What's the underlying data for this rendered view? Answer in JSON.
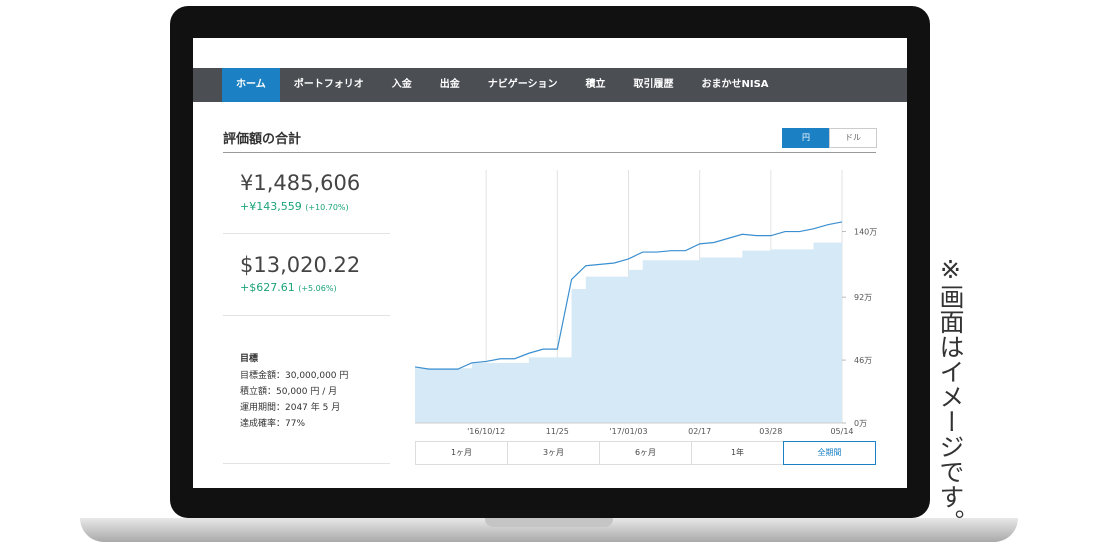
{
  "nav": [
    "ホーム",
    "ポートフォリオ",
    "入金",
    "出金",
    "ナビゲーション",
    "積立",
    "取引履歴",
    "おまかせNISA"
  ],
  "section_title": "評価額の合計",
  "currency_toggle": [
    "円",
    "ドル"
  ],
  "summary": [
    {
      "amount": "¥1,485,606",
      "change": "+¥143,559",
      "change_pct": "(+10.70%)"
    },
    {
      "amount": "$13,020.22",
      "change": "+$627.61",
      "change_pct": "(+5.06%)"
    }
  ],
  "goal": {
    "title": "目標",
    "lines": [
      "目標金額：30,000,000 円",
      "積立額：50,000 円 / 月",
      "運用期間：2047 年 5 月",
      "達成確率：77%"
    ]
  },
  "chart_data": {
    "type": "line",
    "categories": [
      null,
      null,
      null,
      null,
      null,
      "'16/10/12",
      null,
      null,
      null,
      null,
      "11/25",
      null,
      null,
      null,
      null,
      "'17/01/03",
      null,
      null,
      null,
      null,
      "02/17",
      null,
      null,
      null,
      null,
      "03/28",
      null,
      null,
      null,
      null,
      "05/14"
    ],
    "series": [
      {
        "color": "#d6e9f6",
        "values": [
          40,
          40,
          40,
          40,
          44,
          44,
          44,
          44,
          48,
          48,
          48,
          98,
          107,
          107,
          107,
          112,
          119,
          119,
          119,
          119,
          121,
          121,
          121,
          126,
          126,
          127,
          127,
          127,
          132,
          132,
          132
        ]
      },
      {
        "color": "#3b8fd0",
        "values": [
          41,
          39.4,
          39.4,
          39.4,
          44,
          45,
          47,
          47,
          51,
          54,
          54,
          105,
          115,
          116,
          117,
          120,
          125,
          125,
          126,
          126,
          131,
          132,
          135,
          138,
          137,
          137,
          140,
          140,
          142,
          145,
          147
        ]
      }
    ],
    "ylim": [
      0,
      185
    ],
    "yticks": [
      {
        "value": 0,
        "label": "0万"
      },
      {
        "value": 46,
        "label": "46万"
      },
      {
        "value": 92,
        "label": "92万"
      },
      {
        "value": 140,
        "label": "140万"
      }
    ],
    "grid": true
  },
  "periods": [
    "1ヶ月",
    "3ヶ月",
    "6ヶ月",
    "1年",
    "全期間"
  ],
  "note": "※画面はイメージです。"
}
